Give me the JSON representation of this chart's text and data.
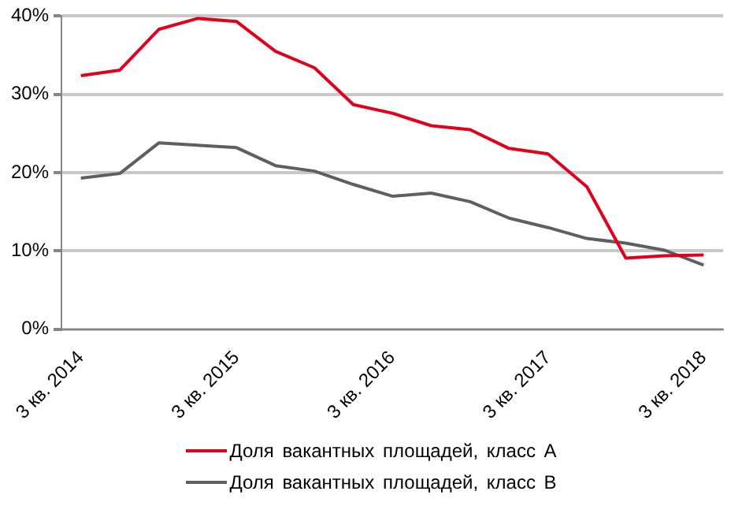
{
  "chart_data": {
    "type": "line",
    "categories": [
      "3 кв. 2014",
      null,
      null,
      null,
      "3 кв. 2015",
      null,
      null,
      null,
      "3 кв. 2016",
      null,
      null,
      null,
      "3 кв. 2017",
      null,
      null,
      null,
      "3 кв. 2018"
    ],
    "series": [
      {
        "name": "Доля вакантных площадей, класс А",
        "color": "#e2001a",
        "values": [
          32.4,
          33.1,
          38.3,
          39.7,
          39.3,
          35.5,
          33.4,
          28.7,
          27.6,
          26.0,
          25.5,
          23.1,
          22.4,
          18.2,
          9.1,
          9.4,
          9.5
        ]
      },
      {
        "name": "Доля вакантных площадей, класс В",
        "color": "#5f5f5f",
        "values": [
          19.3,
          19.9,
          23.8,
          23.5,
          23.2,
          20.9,
          20.2,
          18.5,
          17.0,
          17.4,
          16.3,
          14.2,
          13.0,
          11.6,
          11.0,
          10.1,
          8.2
        ]
      }
    ],
    "ylim": [
      0,
      40
    ],
    "yticks": [
      {
        "value": 0,
        "label": "0%"
      },
      {
        "value": 10,
        "label": "10%"
      },
      {
        "value": 20,
        "label": "20%"
      },
      {
        "value": 30,
        "label": "30%"
      },
      {
        "value": 40,
        "label": "40%"
      }
    ],
    "grid": "y",
    "legend": "bottom",
    "marker": "none",
    "line_style": "solid"
  }
}
